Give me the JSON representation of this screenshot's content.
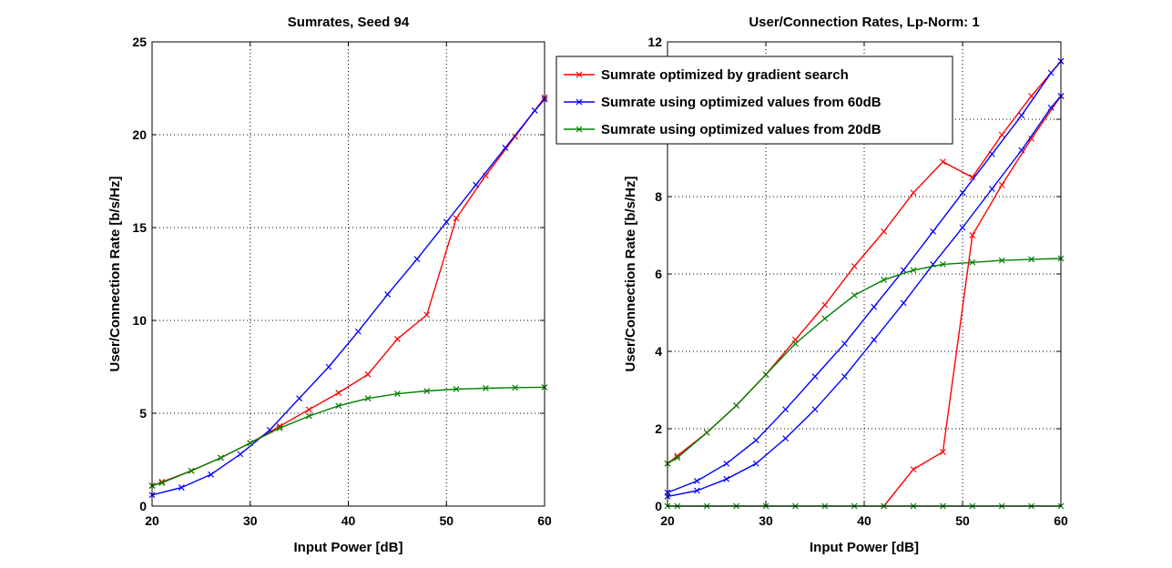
{
  "chart_data": [
    {
      "type": "line",
      "title": "Sumrates, Seed 94",
      "xlabel": "Input Power [dB]",
      "ylabel": "User/Connection Rate [b/s/Hz]",
      "xlim": [
        20,
        60
      ],
      "ylim": [
        0,
        25
      ],
      "xticks": [
        "20",
        "30",
        "40",
        "50",
        "60"
      ],
      "yticks": [
        "0",
        "5",
        "10",
        "15",
        "20",
        "25"
      ],
      "grid": true,
      "series": [
        {
          "color": "#ff0000",
          "x": [
            20,
            21,
            24,
            27,
            30,
            33,
            36,
            39,
            42,
            45,
            48,
            51,
            54,
            57,
            60
          ],
          "y": [
            1.1,
            1.3,
            1.9,
            2.6,
            3.4,
            4.3,
            5.2,
            6.1,
            7.1,
            9.0,
            10.3,
            15.5,
            17.8,
            19.9,
            22.0
          ]
        },
        {
          "color": "#0000ff",
          "x": [
            20,
            23,
            26,
            29,
            32,
            35,
            38,
            41,
            44,
            47,
            50,
            53,
            56,
            59,
            60
          ],
          "y": [
            0.6,
            1.0,
            1.7,
            2.8,
            4.1,
            5.8,
            7.5,
            9.4,
            11.4,
            13.3,
            15.3,
            17.3,
            19.3,
            21.3,
            21.9
          ]
        },
        {
          "color": "#008000",
          "x": [
            20,
            21,
            24,
            27,
            30,
            33,
            36,
            39,
            42,
            45,
            48,
            51,
            54,
            57,
            60
          ],
          "y": [
            1.1,
            1.25,
            1.9,
            2.6,
            3.4,
            4.2,
            4.85,
            5.4,
            5.8,
            6.05,
            6.2,
            6.3,
            6.35,
            6.38,
            6.4
          ]
        }
      ]
    },
    {
      "type": "line",
      "title": "User/Connection Rates, Lp-Norm: 1",
      "xlabel": "Input Power [dB]",
      "ylabel": "User/Connection Rate [b/s/Hz]",
      "xlim": [
        20,
        60
      ],
      "ylim": [
        0,
        12
      ],
      "xticks": [
        "20",
        "30",
        "40",
        "50",
        "60"
      ],
      "yticks": [
        "0",
        "2",
        "4",
        "6",
        "8",
        "10",
        "12"
      ],
      "grid": true,
      "legend": {
        "placement": "top-left, outside partly overlapping top-right of left plot",
        "entries": [
          {
            "label": "Sumrate optimized by gradient search",
            "color": "#ff0000"
          },
          {
            "label": "Sumrate using optimized values from 60dB",
            "color": "#0000ff"
          },
          {
            "label": "Sumrate using optimized values from 20dB",
            "color": "#008000"
          }
        ]
      },
      "series": [
        {
          "color": "#ff0000",
          "x": [
            20,
            21,
            24,
            27,
            30,
            33,
            36,
            39,
            42,
            45,
            48,
            51,
            54,
            57,
            60
          ],
          "y": [
            1.1,
            1.3,
            1.9,
            2.6,
            3.4,
            4.3,
            5.2,
            6.2,
            7.1,
            8.1,
            8.9,
            8.5,
            9.6,
            10.6,
            11.5
          ]
        },
        {
          "color": "#ff0000",
          "x": [
            42,
            45,
            48,
            51,
            54,
            57,
            60
          ],
          "y": [
            0.0,
            0.95,
            1.4,
            7.0,
            8.3,
            9.5,
            10.6
          ]
        },
        {
          "color": "#0000ff",
          "x": [
            20,
            23,
            26,
            29,
            32,
            35,
            38,
            41,
            44,
            47,
            50,
            53,
            56,
            59,
            60
          ],
          "y": [
            0.35,
            0.65,
            1.1,
            1.7,
            2.5,
            3.35,
            4.2,
            5.15,
            6.1,
            7.1,
            8.1,
            9.1,
            10.1,
            11.2,
            11.5
          ]
        },
        {
          "color": "#0000ff",
          "x": [
            20,
            23,
            26,
            29,
            32,
            35,
            38,
            41,
            44,
            47,
            50,
            53,
            56,
            59,
            60
          ],
          "y": [
            0.25,
            0.4,
            0.7,
            1.1,
            1.75,
            2.5,
            3.35,
            4.3,
            5.25,
            6.25,
            7.2,
            8.2,
            9.2,
            10.3,
            10.6
          ]
        },
        {
          "color": "#008000",
          "x": [
            20,
            21,
            24,
            27,
            30,
            33,
            36,
            39,
            42,
            45,
            48,
            51,
            54,
            57,
            60
          ],
          "y": [
            1.1,
            1.25,
            1.9,
            2.6,
            3.4,
            4.2,
            4.85,
            5.45,
            5.85,
            6.1,
            6.25,
            6.3,
            6.35,
            6.38,
            6.4
          ]
        },
        {
          "color": "#008000",
          "x": [
            20,
            21,
            24,
            27,
            30,
            33,
            36,
            39,
            42,
            45,
            48,
            51,
            54,
            57,
            60
          ],
          "y": [
            0,
            0,
            0,
            0,
            0,
            0,
            0,
            0,
            0,
            0,
            0,
            0,
            0,
            0,
            0
          ]
        }
      ]
    }
  ]
}
